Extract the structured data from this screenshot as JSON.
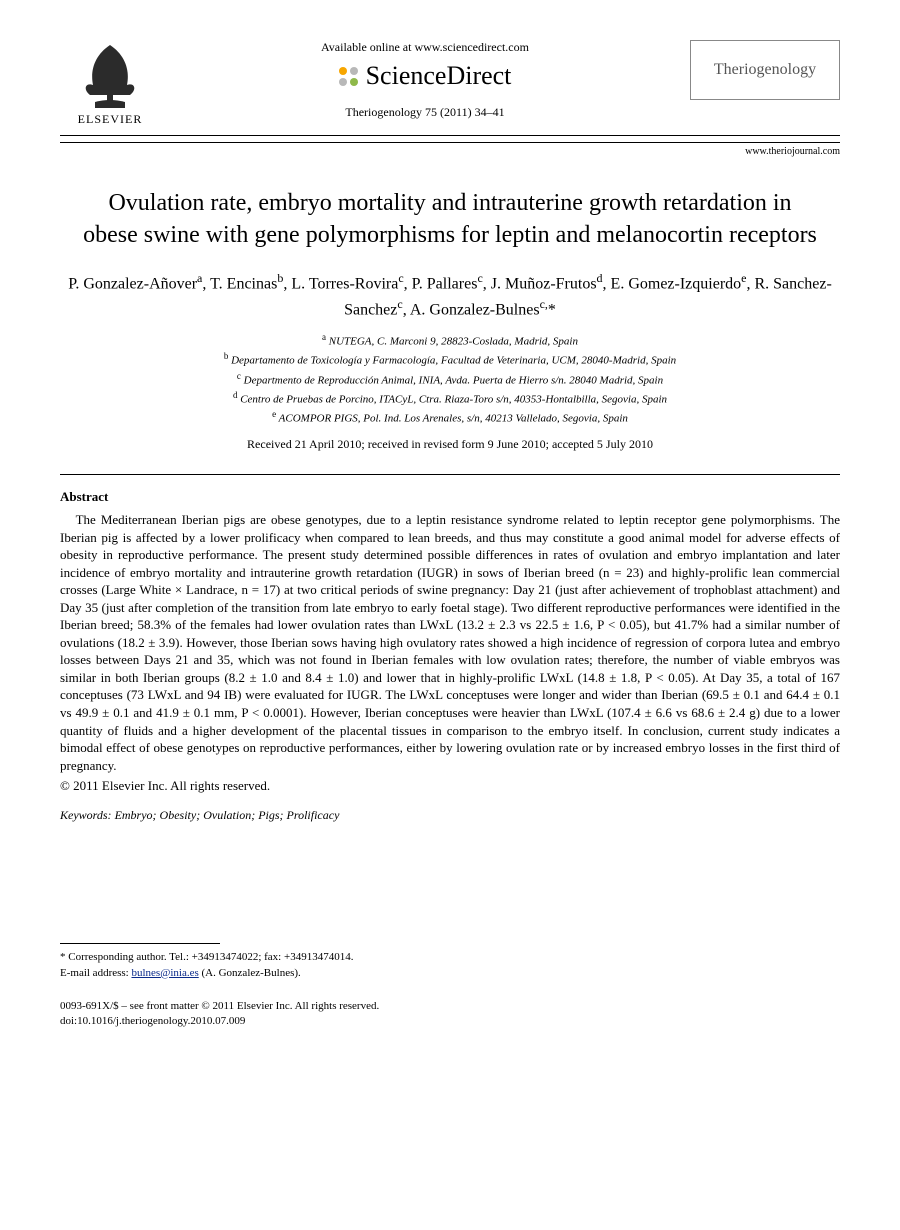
{
  "header": {
    "available_online": "Available online at www.sciencedirect.com",
    "sd_brand": "ScienceDirect",
    "elsevier_label": "ELSEVIER",
    "journal_ref": "Theriogenology 75 (2011) 34–41",
    "journal_name": "Theriogenology",
    "journal_url": "www.theriojournal.com",
    "sd_dot_colors": [
      "#f7a600",
      "#b8b8b8",
      "#b8b8b8",
      "#8fb94a"
    ]
  },
  "title": "Ovulation rate, embryo mortality and intrauterine growth retardation in obese swine with gene polymorphisms for leptin and melanocortin receptors",
  "authors_html": "P. Gonzalez-Añover<sup>a</sup>, T. Encinas<sup>b</sup>, L. Torres-Rovira<sup>c</sup>, P. Pallares<sup>c</sup>, J. Muñoz-Frutos<sup>d</sup>, E. Gomez-Izquierdo<sup>e</sup>, R. Sanchez-Sanchez<sup>c</sup>, A. Gonzalez-Bulnes<sup>c,</sup>*",
  "affiliations": [
    {
      "sup": "a",
      "text": "NUTEGA, C. Marconi 9, 28823-Coslada, Madrid, Spain"
    },
    {
      "sup": "b",
      "text": "Departamento de Toxicología y Farmacología, Facultad de Veterinaria, UCM, 28040-Madrid, Spain"
    },
    {
      "sup": "c",
      "text": "Departmento de Reproducción Animal, INIA, Avda. Puerta de Hierro s/n. 28040 Madrid, Spain"
    },
    {
      "sup": "d",
      "text": "Centro de Pruebas de Porcino, ITACyL, Ctra. Riaza-Toro s/n, 40353-Hontalbilla, Segovia, Spain"
    },
    {
      "sup": "e",
      "text": "ACOMPOR PIGS, Pol. Ind. Los Arenales, s/n, 40213 Vallelado, Segovia, Spain"
    }
  ],
  "dates": "Received 21 April 2010; received in revised form 9 June 2010; accepted 5 July 2010",
  "abstract": {
    "heading": "Abstract",
    "body": "The Mediterranean Iberian pigs are obese genotypes, due to a leptin resistance syndrome related to leptin receptor gene polymorphisms. The Iberian pig is affected by a lower prolificacy when compared to lean breeds, and thus may constitute a good animal model for adverse effects of obesity in reproductive performance. The present study determined possible differences in rates of ovulation and embryo implantation and later incidence of embryo mortality and intrauterine growth retardation (IUGR) in sows of Iberian breed (n = 23) and highly-prolific lean commercial crosses (Large White × Landrace, n = 17) at two critical periods of swine pregnancy: Day 21 (just after achievement of trophoblast attachment) and Day 35 (just after completion of the transition from late embryo to early foetal stage). Two different reproductive performances were identified in the Iberian breed; 58.3% of the females had lower ovulation rates than LWxL (13.2 ± 2.3 vs 22.5 ± 1.6, P < 0.05), but 41.7% had a similar number of ovulations (18.2 ± 3.9). However, those Iberian sows having high ovulatory rates showed a high incidence of regression of corpora lutea and embryo losses between Days 21 and 35, which was not found in Iberian females with low ovulation rates; therefore, the number of viable embryos was similar in both Iberian groups (8.2 ± 1.0 and 8.4 ± 1.0) and lower that in highly-prolific LWxL (14.8 ± 1.8, P < 0.05). At Day 35, a total of 167 conceptuses (73 LWxL and 94 IB) were evaluated for IUGR. The LWxL conceptuses were longer and wider than Iberian (69.5 ± 0.1 and 64.4 ± 0.1 vs 49.9 ± 0.1 and 41.9 ± 0.1 mm, P < 0.0001). However, Iberian conceptuses were heavier than LWxL (107.4 ± 6.6 vs 68.6 ± 2.4 g) due to a lower quantity of fluids and a higher development of the placental tissues in comparison to the embryo itself. In conclusion, current study indicates a bimodal effect of obese genotypes on reproductive performances, either by lowering ovulation rate or by increased embryo losses in the first third of pregnancy.",
    "copyright": "© 2011 Elsevier Inc. All rights reserved."
  },
  "keywords": {
    "label": "Keywords:",
    "list": "Embryo; Obesity; Ovulation; Pigs; Prolificacy"
  },
  "correspondence": {
    "line1": "* Corresponding author. Tel.: +34913474022; fax: +34913474014.",
    "email_label": "E-mail address:",
    "email": "bulnes@inia.es",
    "email_name": "(A. Gonzalez-Bulnes)."
  },
  "front_matter": {
    "line1": "0093-691X/$ – see front matter © 2011 Elsevier Inc. All rights reserved.",
    "line2": "doi:10.1016/j.theriogenology.2010.07.009"
  }
}
